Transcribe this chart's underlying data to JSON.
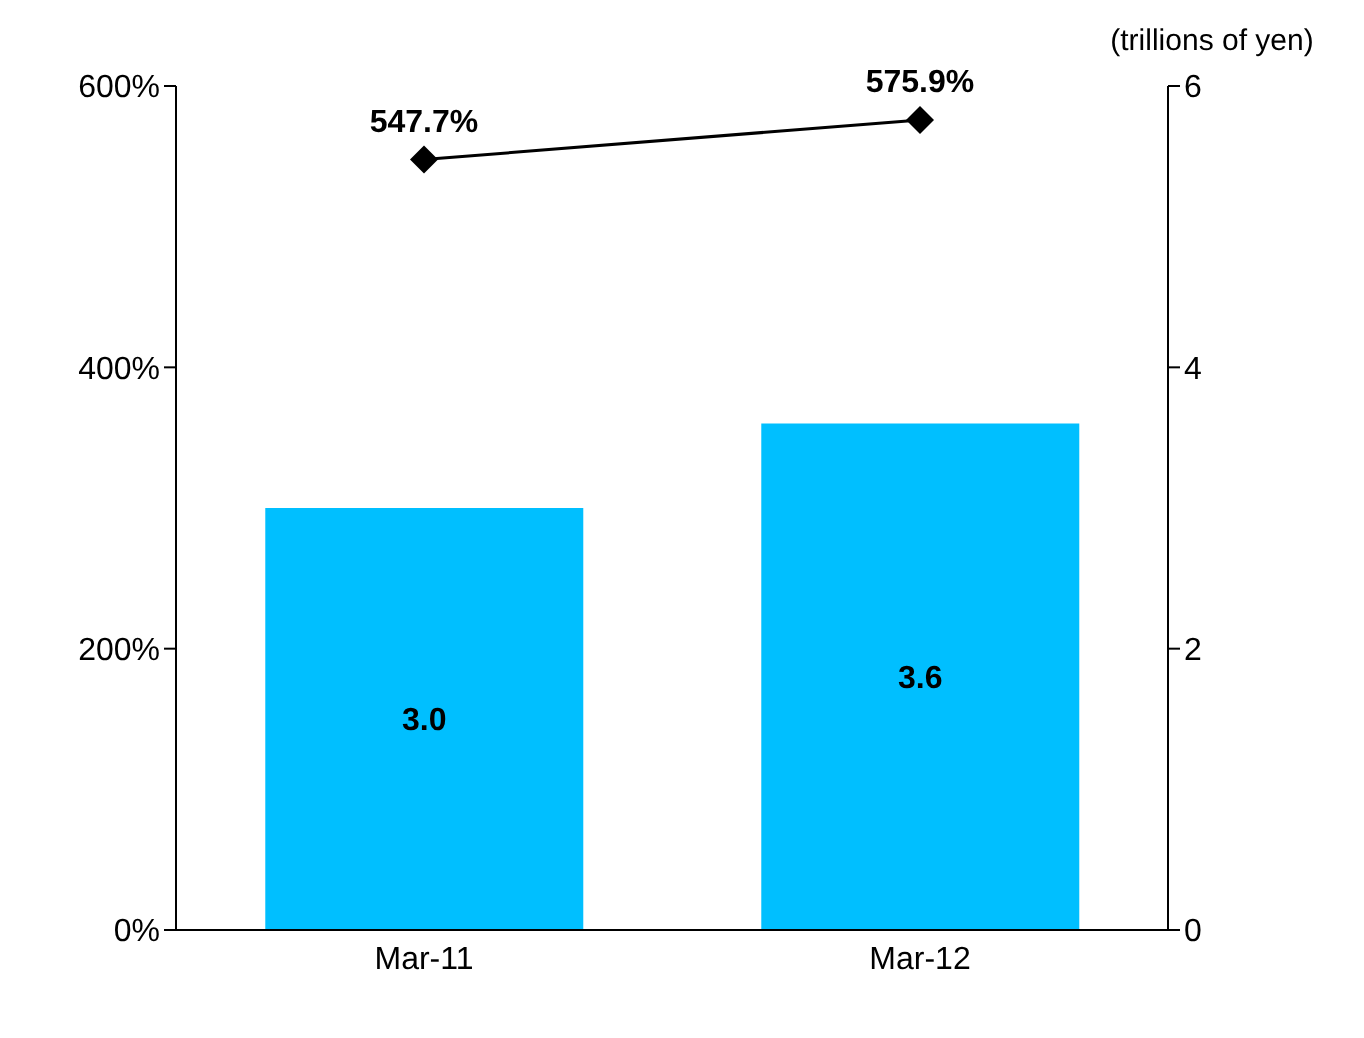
{
  "chart_data": {
    "type": "bar",
    "categories": [
      "Mar-11",
      "Mar-12"
    ],
    "series": [
      {
        "axis": "y2",
        "color": "#00bfff",
        "values": [
          3.0,
          3.6
        ],
        "value_labels": [
          "3.0",
          "3.6"
        ]
      },
      {
        "type": "line",
        "axis": "y",
        "color": "#000000",
        "values": [
          547.7,
          575.9
        ],
        "value_labels": [
          "547.7%",
          "575.9%"
        ],
        "marker": "diamond"
      }
    ],
    "y2label": "(trillions of yen)",
    "ylim": [
      0,
      600
    ],
    "yticks": [
      {
        "value": 0,
        "label": "0%"
      },
      {
        "value": 200,
        "label": "200%"
      },
      {
        "value": 400,
        "label": "400%"
      },
      {
        "value": 600,
        "label": "600%"
      }
    ],
    "y2lim": [
      0,
      6
    ],
    "y2ticks": [
      0,
      2,
      4,
      6
    ],
    "grid": false
  }
}
